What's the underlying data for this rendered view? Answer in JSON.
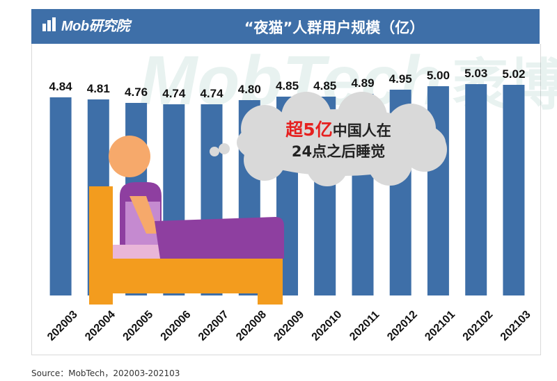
{
  "header": {
    "logo_text": "Mob研究院",
    "title": "“夜猫”人群用户规模（亿）"
  },
  "callout": {
    "highlight": "超5亿",
    "line1_rest": "中国人在",
    "line2": "24点之后睡觉"
  },
  "source": "Source：MobTech，202003-202103",
  "colors": {
    "bar": "#3E6FA8",
    "header": "#3E6FA8",
    "highlight": "#E6201F"
  },
  "chart_data": {
    "type": "bar",
    "title": "“夜猫”人群用户规模（亿）",
    "xlabel": "",
    "ylabel": "",
    "categories": [
      "202003",
      "202004",
      "202005",
      "202006",
      "202007",
      "202008",
      "202009",
      "202010",
      "202011",
      "202012",
      "202101",
      "202102",
      "202103"
    ],
    "values": [
      4.84,
      4.81,
      4.76,
      4.74,
      4.74,
      4.8,
      4.85,
      4.85,
      4.89,
      4.95,
      5.0,
      5.03,
      5.02
    ],
    "value_labels": [
      "4.84",
      "4.81",
      "4.76",
      "4.74",
      "4.74",
      "4.80",
      "4.85",
      "4.85",
      "4.89",
      "4.95",
      "5.00",
      "5.03",
      "5.02"
    ],
    "grid": false,
    "legend": "none"
  }
}
